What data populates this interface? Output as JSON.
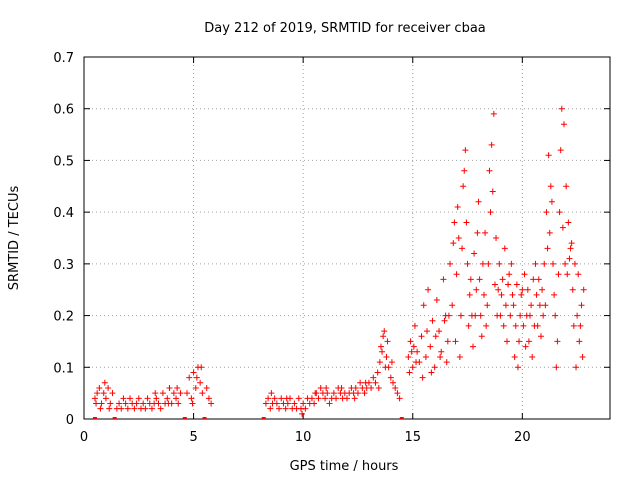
{
  "chart_data": {
    "type": "scatter",
    "title": "Day 212 of 2019, SRMTID for receiver cbaa",
    "xlabel": "GPS time / hours",
    "ylabel": "SRMTID / TECUs",
    "xlim": [
      0,
      24
    ],
    "ylim": [
      0,
      0.7
    ],
    "grid": true,
    "marker": "+",
    "color": "#ff0000",
    "x_ticks": [
      0,
      5,
      10,
      15,
      20
    ],
    "x_tick_labels": [
      "0",
      "5",
      "10",
      "15",
      "20"
    ],
    "y_ticks": [
      0,
      0.1,
      0.2,
      0.3,
      0.4,
      0.5,
      0.6,
      0.7
    ],
    "y_tick_labels": [
      "0",
      "0.1",
      "0.2",
      "0.3",
      "0.4",
      "0.5",
      "0.6",
      "0.7"
    ],
    "baseline_markers_x": [
      0.5,
      1.4,
      4.6,
      5.5,
      8.2,
      14.5
    ],
    "series": [
      {
        "name": "SRMTID",
        "points": [
          [
            0.5,
            0.04
          ],
          [
            0.6,
            0.05
          ],
          [
            0.7,
            0.06
          ],
          [
            0.8,
            0.03
          ],
          [
            0.9,
            0.05
          ],
          [
            1.0,
            0.04
          ],
          [
            1.1,
            0.06
          ],
          [
            1.2,
            0.03
          ],
          [
            1.3,
            0.05
          ],
          [
            1.5,
            0.02
          ],
          [
            1.6,
            0.03
          ],
          [
            1.7,
            0.02
          ],
          [
            1.8,
            0.04
          ],
          [
            1.9,
            0.03
          ],
          [
            2.0,
            0.02
          ],
          [
            2.1,
            0.04
          ],
          [
            2.2,
            0.03
          ],
          [
            2.3,
            0.02
          ],
          [
            2.4,
            0.03
          ],
          [
            2.5,
            0.04
          ],
          [
            2.6,
            0.02
          ],
          [
            2.7,
            0.03
          ],
          [
            2.8,
            0.02
          ],
          [
            2.9,
            0.04
          ],
          [
            3.0,
            0.03
          ],
          [
            3.1,
            0.02
          ],
          [
            3.2,
            0.03
          ],
          [
            3.3,
            0.04
          ],
          [
            3.4,
            0.03
          ],
          [
            3.5,
            0.02
          ],
          [
            3.6,
            0.05
          ],
          [
            3.7,
            0.03
          ],
          [
            3.8,
            0.04
          ],
          [
            3.9,
            0.06
          ],
          [
            4.0,
            0.03
          ],
          [
            4.1,
            0.05
          ],
          [
            4.2,
            0.04
          ],
          [
            4.3,
            0.03
          ],
          [
            4.4,
            0.05
          ],
          [
            4.7,
            0.05
          ],
          [
            4.8,
            0.08
          ],
          [
            4.9,
            0.04
          ],
          [
            5.0,
            0.09
          ],
          [
            5.1,
            0.06
          ],
          [
            5.2,
            0.1
          ],
          [
            5.3,
            0.07
          ],
          [
            5.4,
            0.05
          ],
          [
            5.6,
            0.06
          ],
          [
            5.7,
            0.04
          ],
          [
            5.8,
            0.03
          ],
          [
            8.3,
            0.03
          ],
          [
            8.4,
            0.04
          ],
          [
            8.5,
            0.02
          ],
          [
            8.6,
            0.03
          ],
          [
            8.7,
            0.04
          ],
          [
            8.8,
            0.03
          ],
          [
            8.9,
            0.02
          ],
          [
            9.0,
            0.04
          ],
          [
            9.1,
            0.03
          ],
          [
            9.2,
            0.02
          ],
          [
            9.3,
            0.03
          ],
          [
            9.4,
            0.04
          ],
          [
            9.5,
            0.02
          ],
          [
            9.6,
            0.03
          ],
          [
            9.7,
            0.02
          ],
          [
            9.8,
            0.04
          ],
          [
            9.9,
            0.02
          ],
          [
            10.0,
            0.03
          ],
          [
            10.1,
            0.02
          ],
          [
            10.2,
            0.04
          ],
          [
            10.3,
            0.03
          ],
          [
            10.4,
            0.04
          ],
          [
            10.5,
            0.03
          ],
          [
            10.6,
            0.05
          ],
          [
            10.7,
            0.04
          ],
          [
            10.8,
            0.06
          ],
          [
            10.9,
            0.05
          ],
          [
            11.0,
            0.04
          ],
          [
            11.1,
            0.05
          ],
          [
            11.2,
            0.03
          ],
          [
            11.3,
            0.04
          ],
          [
            11.4,
            0.05
          ],
          [
            11.5,
            0.04
          ],
          [
            11.6,
            0.06
          ],
          [
            11.7,
            0.05
          ],
          [
            11.8,
            0.04
          ],
          [
            11.9,
            0.05
          ],
          [
            12.0,
            0.04
          ],
          [
            12.1,
            0.05
          ],
          [
            12.2,
            0.06
          ],
          [
            12.3,
            0.05
          ],
          [
            12.4,
            0.06
          ],
          [
            12.5,
            0.05
          ],
          [
            12.6,
            0.07
          ],
          [
            12.7,
            0.06
          ],
          [
            12.8,
            0.05
          ],
          [
            12.9,
            0.06
          ],
          [
            13.0,
            0.07
          ],
          [
            13.1,
            0.06
          ],
          [
            13.2,
            0.08
          ],
          [
            13.3,
            0.07
          ],
          [
            13.4,
            0.09
          ],
          [
            13.5,
            0.11
          ],
          [
            13.6,
            0.13
          ],
          [
            13.7,
            0.17
          ],
          [
            13.8,
            0.12
          ],
          [
            13.9,
            0.1
          ],
          [
            14.0,
            0.08
          ],
          [
            14.1,
            0.07
          ],
          [
            14.2,
            0.06
          ],
          [
            14.3,
            0.05
          ],
          [
            14.4,
            0.04
          ],
          [
            14.8,
            0.12
          ],
          [
            14.9,
            0.15
          ],
          [
            15.0,
            0.1
          ],
          [
            15.1,
            0.18
          ],
          [
            15.2,
            0.13
          ],
          [
            15.3,
            0.11
          ],
          [
            15.4,
            0.16
          ],
          [
            15.5,
            0.22
          ],
          [
            15.6,
            0.12
          ],
          [
            15.7,
            0.25
          ],
          [
            15.8,
            0.14
          ],
          [
            15.9,
            0.19
          ],
          [
            16.0,
            0.1
          ],
          [
            16.1,
            0.23
          ],
          [
            16.2,
            0.17
          ],
          [
            16.3,
            0.13
          ],
          [
            16.4,
            0.27
          ],
          [
            16.5,
            0.2
          ],
          [
            16.6,
            0.15
          ],
          [
            16.7,
            0.3
          ],
          [
            16.8,
            0.22
          ],
          [
            16.9,
            0.38
          ],
          [
            17.0,
            0.28
          ],
          [
            17.1,
            0.35
          ],
          [
            17.2,
            0.2
          ],
          [
            17.3,
            0.45
          ],
          [
            17.4,
            0.52
          ],
          [
            17.5,
            0.3
          ],
          [
            17.6,
            0.24
          ],
          [
            17.7,
            0.2
          ],
          [
            17.8,
            0.32
          ],
          [
            17.9,
            0.25
          ],
          [
            18.0,
            0.42
          ],
          [
            18.1,
            0.2
          ],
          [
            18.2,
            0.3
          ],
          [
            18.3,
            0.36
          ],
          [
            18.4,
            0.22
          ],
          [
            18.5,
            0.48
          ],
          [
            18.6,
            0.53
          ],
          [
            18.7,
            0.59
          ],
          [
            18.8,
            0.35
          ],
          [
            18.9,
            0.25
          ],
          [
            19.0,
            0.2
          ],
          [
            19.1,
            0.27
          ],
          [
            19.2,
            0.33
          ],
          [
            19.3,
            0.15
          ],
          [
            19.4,
            0.28
          ],
          [
            19.5,
            0.3
          ],
          [
            19.6,
            0.22
          ],
          [
            19.7,
            0.18
          ],
          [
            19.8,
            0.1
          ],
          [
            19.9,
            0.2
          ],
          [
            20.0,
            0.25
          ],
          [
            20.1,
            0.28
          ],
          [
            20.2,
            0.2
          ],
          [
            20.3,
            0.15
          ],
          [
            20.4,
            0.22
          ],
          [
            20.5,
            0.27
          ],
          [
            20.6,
            0.3
          ],
          [
            20.7,
            0.18
          ],
          [
            20.8,
            0.22
          ],
          [
            20.9,
            0.25
          ],
          [
            21.0,
            0.3
          ],
          [
            21.1,
            0.4
          ],
          [
            21.2,
            0.51
          ],
          [
            21.3,
            0.45
          ],
          [
            21.4,
            0.3
          ],
          [
            21.5,
            0.2
          ],
          [
            21.6,
            0.15
          ],
          [
            21.7,
            0.4
          ],
          [
            21.8,
            0.6
          ],
          [
            21.9,
            0.57
          ],
          [
            22.0,
            0.45
          ],
          [
            22.1,
            0.38
          ],
          [
            22.2,
            0.33
          ],
          [
            22.3,
            0.25
          ],
          [
            22.4,
            0.3
          ],
          [
            22.5,
            0.2
          ],
          [
            22.6,
            0.15
          ],
          [
            22.7,
            0.22
          ],
          [
            22.8,
            0.25
          ],
          [
            0.55,
            0.03
          ],
          [
            0.75,
            0.02
          ],
          [
            0.95,
            0.07
          ],
          [
            1.15,
            0.02
          ],
          [
            3.25,
            0.05
          ],
          [
            3.85,
            0.03
          ],
          [
            4.25,
            0.06
          ],
          [
            4.95,
            0.03
          ],
          [
            5.15,
            0.08
          ],
          [
            5.35,
            0.1
          ],
          [
            8.55,
            0.05
          ],
          [
            9.25,
            0.04
          ],
          [
            9.95,
            0.01
          ],
          [
            10.55,
            0.05
          ],
          [
            11.05,
            0.06
          ],
          [
            11.75,
            0.06
          ],
          [
            12.35,
            0.04
          ],
          [
            12.85,
            0.07
          ],
          [
            13.45,
            0.06
          ],
          [
            13.55,
            0.14
          ],
          [
            13.65,
            0.16
          ],
          [
            13.75,
            0.1
          ],
          [
            13.85,
            0.15
          ],
          [
            14.05,
            0.11
          ],
          [
            14.85,
            0.09
          ],
          [
            14.95,
            0.13
          ],
          [
            15.05,
            0.14
          ],
          [
            15.15,
            0.11
          ],
          [
            15.45,
            0.08
          ],
          [
            15.65,
            0.17
          ],
          [
            15.85,
            0.09
          ],
          [
            16.05,
            0.16
          ],
          [
            16.25,
            0.12
          ],
          [
            16.45,
            0.19
          ],
          [
            16.55,
            0.11
          ],
          [
            16.65,
            0.2
          ],
          [
            16.85,
            0.34
          ],
          [
            16.95,
            0.15
          ],
          [
            17.05,
            0.41
          ],
          [
            17.15,
            0.12
          ],
          [
            17.25,
            0.33
          ],
          [
            17.35,
            0.48
          ],
          [
            17.45,
            0.38
          ],
          [
            17.55,
            0.18
          ],
          [
            17.65,
            0.27
          ],
          [
            17.75,
            0.14
          ],
          [
            17.85,
            0.2
          ],
          [
            17.95,
            0.36
          ],
          [
            18.05,
            0.27
          ],
          [
            18.15,
            0.16
          ],
          [
            18.25,
            0.24
          ],
          [
            18.35,
            0.18
          ],
          [
            18.45,
            0.3
          ],
          [
            18.55,
            0.4
          ],
          [
            18.65,
            0.44
          ],
          [
            18.75,
            0.26
          ],
          [
            18.85,
            0.2
          ],
          [
            18.95,
            0.3
          ],
          [
            19.05,
            0.24
          ],
          [
            19.15,
            0.18
          ],
          [
            19.25,
            0.22
          ],
          [
            19.35,
            0.26
          ],
          [
            19.45,
            0.2
          ],
          [
            19.55,
            0.24
          ],
          [
            19.65,
            0.12
          ],
          [
            19.75,
            0.26
          ],
          [
            19.85,
            0.15
          ],
          [
            19.95,
            0.24
          ],
          [
            20.05,
            0.18
          ],
          [
            20.15,
            0.14
          ],
          [
            20.25,
            0.25
          ],
          [
            20.35,
            0.2
          ],
          [
            20.45,
            0.12
          ],
          [
            20.55,
            0.18
          ],
          [
            20.65,
            0.24
          ],
          [
            20.75,
            0.27
          ],
          [
            20.85,
            0.16
          ],
          [
            20.95,
            0.2
          ],
          [
            21.05,
            0.22
          ],
          [
            21.15,
            0.33
          ],
          [
            21.25,
            0.36
          ],
          [
            21.35,
            0.42
          ],
          [
            21.45,
            0.24
          ],
          [
            21.55,
            0.1
          ],
          [
            21.65,
            0.28
          ],
          [
            21.75,
            0.52
          ],
          [
            21.85,
            0.37
          ],
          [
            21.95,
            0.3
          ],
          [
            22.05,
            0.28
          ],
          [
            22.15,
            0.31
          ],
          [
            22.25,
            0.34
          ],
          [
            22.35,
            0.18
          ],
          [
            22.45,
            0.1
          ],
          [
            22.55,
            0.28
          ],
          [
            22.65,
            0.18
          ],
          [
            22.75,
            0.12
          ]
        ]
      }
    ]
  }
}
